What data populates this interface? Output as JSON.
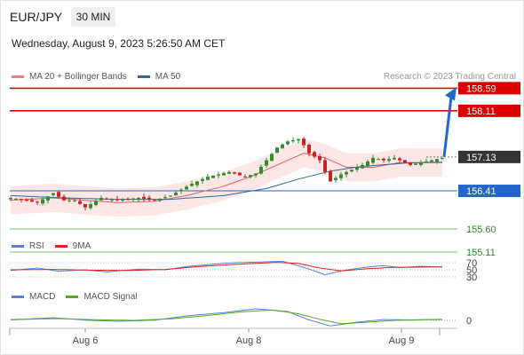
{
  "header": {
    "pair": "EUR/JPY",
    "interval": "30 MIN",
    "datetime": "Wednesday, August 9, 2023 5:26:50 AM CET",
    "credit": "Research © 2023 Trading Central"
  },
  "legends": {
    "main": [
      {
        "label": "MA 20 + Bollinger Bands",
        "color": "#f08080"
      },
      {
        "label": "MA 50",
        "color": "#336699"
      }
    ],
    "rsi": [
      {
        "label": "RSI",
        "color": "#5b7fd6"
      },
      {
        "label": "9MA",
        "color": "#dd2222"
      }
    ],
    "macd": [
      {
        "label": "MACD",
        "color": "#5b7fd6"
      },
      {
        "label": "MACD Signal",
        "color": "#55aa22"
      }
    ]
  },
  "chart_data": {
    "type": "candlestick",
    "x_ticks": [
      "Aug 6",
      "Aug 8",
      "Aug 9"
    ],
    "ylim": [
      154.96,
      158.88
    ],
    "levels": [
      {
        "value": 158.59,
        "label": "158.59",
        "color": "#dd0000",
        "kind": "resistance"
      },
      {
        "value": 158.11,
        "label": "158.11",
        "color": "#dd0000",
        "kind": "resistance"
      },
      {
        "value": 157.13,
        "label": "157.13",
        "color": "#333333",
        "kind": "last price"
      },
      {
        "value": 156.41,
        "label": "156.41",
        "color": "#2266cc",
        "kind": "pivot"
      },
      {
        "value": 155.6,
        "label": "155.60",
        "color": "#66bb66",
        "kind": "support"
      },
      {
        "value": 155.11,
        "label": "155.11",
        "color": "#66bb66",
        "kind": "support"
      }
    ],
    "price_path": [
      [
        0,
        156.26
      ],
      [
        5,
        156.16
      ],
      [
        8,
        156.36
      ],
      [
        10,
        156.21
      ],
      [
        12,
        156.21
      ],
      [
        14,
        156.06
      ],
      [
        17,
        156.26
      ],
      [
        20,
        156.21
      ],
      [
        24,
        156.26
      ],
      [
        27,
        156.21
      ],
      [
        30,
        156.31
      ],
      [
        34,
        156.56
      ],
      [
        37,
        156.71
      ],
      [
        41,
        156.81
      ],
      [
        44,
        156.71
      ],
      [
        46,
        156.78
      ],
      [
        48,
        157.06
      ],
      [
        50,
        157.33
      ],
      [
        52,
        157.46
      ],
      [
        54,
        157.51
      ],
      [
        55,
        157.38
      ],
      [
        56,
        157.21
      ],
      [
        58,
        157.06
      ],
      [
        59,
        156.81
      ],
      [
        60,
        156.61
      ],
      [
        62,
        156.76
      ],
      [
        64,
        156.86
      ],
      [
        66,
        156.96
      ],
      [
        68,
        157.11
      ],
      [
        70,
        157.06
      ],
      [
        72,
        157.11
      ],
      [
        75,
        156.96
      ],
      [
        77,
        157.01
      ],
      [
        79,
        157.06
      ],
      [
        81,
        157.11
      ]
    ],
    "ma20_path": [
      [
        0,
        156.21
      ],
      [
        8,
        156.26
      ],
      [
        14,
        156.21
      ],
      [
        20,
        156.16
      ],
      [
        27,
        156.19
      ],
      [
        33,
        156.31
      ],
      [
        40,
        156.51
      ],
      [
        45,
        156.71
      ],
      [
        50,
        156.96
      ],
      [
        55,
        157.21
      ],
      [
        59,
        157.11
      ],
      [
        63,
        156.91
      ],
      [
        68,
        156.91
      ],
      [
        73,
        157.01
      ],
      [
        81,
        157.01
      ]
    ],
    "ma50_path": [
      [
        0,
        156.31
      ],
      [
        10,
        156.26
      ],
      [
        20,
        156.23
      ],
      [
        30,
        156.23
      ],
      [
        40,
        156.31
      ],
      [
        48,
        156.46
      ],
      [
        54,
        156.66
      ],
      [
        60,
        156.83
      ],
      [
        66,
        156.93
      ],
      [
        74,
        157.0
      ],
      [
        81,
        157.02
      ]
    ],
    "bollinger_width": 0.3,
    "forecast_arrow": {
      "from": 157.13,
      "to": 158.59
    },
    "rsi": {
      "levels": [
        "70",
        "50",
        "30"
      ],
      "rsi_path": [
        [
          0,
          48
        ],
        [
          5,
          55
        ],
        [
          9,
          46
        ],
        [
          14,
          50
        ],
        [
          18,
          44
        ],
        [
          24,
          52
        ],
        [
          29,
          50
        ],
        [
          33,
          59
        ],
        [
          38,
          66
        ],
        [
          42,
          70
        ],
        [
          47,
          72
        ],
        [
          51,
          74
        ],
        [
          53,
          66
        ],
        [
          56,
          52
        ],
        [
          59,
          36
        ],
        [
          62,
          47
        ],
        [
          66,
          56
        ],
        [
          70,
          62
        ],
        [
          73,
          56
        ],
        [
          77,
          60
        ],
        [
          81,
          58
        ]
      ],
      "ma_path": [
        [
          0,
          50
        ],
        [
          8,
          51
        ],
        [
          15,
          49
        ],
        [
          22,
          48
        ],
        [
          29,
          51
        ],
        [
          36,
          60
        ],
        [
          43,
          66
        ],
        [
          50,
          71
        ],
        [
          54,
          68
        ],
        [
          58,
          55
        ],
        [
          62,
          47
        ],
        [
          67,
          53
        ],
        [
          72,
          57
        ],
        [
          81,
          58
        ]
      ]
    },
    "macd": {
      "zero_label": "0",
      "macd_path": [
        [
          0,
          0.02
        ],
        [
          8,
          0.12
        ],
        [
          14,
          0.01
        ],
        [
          20,
          -0.04
        ],
        [
          27,
          0.01
        ],
        [
          33,
          0.2
        ],
        [
          40,
          0.35
        ],
        [
          46,
          0.52
        ],
        [
          52,
          0.4
        ],
        [
          56,
          0.02
        ],
        [
          60,
          -0.25
        ],
        [
          65,
          -0.08
        ],
        [
          70,
          0.04
        ],
        [
          75,
          0.02
        ],
        [
          81,
          0.05
        ]
      ],
      "signal_path": [
        [
          0,
          0.04
        ],
        [
          9,
          0.08
        ],
        [
          16,
          0.03
        ],
        [
          23,
          0.0
        ],
        [
          30,
          0.07
        ],
        [
          37,
          0.22
        ],
        [
          43,
          0.38
        ],
        [
          49,
          0.47
        ],
        [
          54,
          0.3
        ],
        [
          58,
          0.05
        ],
        [
          62,
          -0.15
        ],
        [
          67,
          -0.08
        ],
        [
          72,
          0.0
        ],
        [
          81,
          0.04
        ]
      ]
    }
  }
}
